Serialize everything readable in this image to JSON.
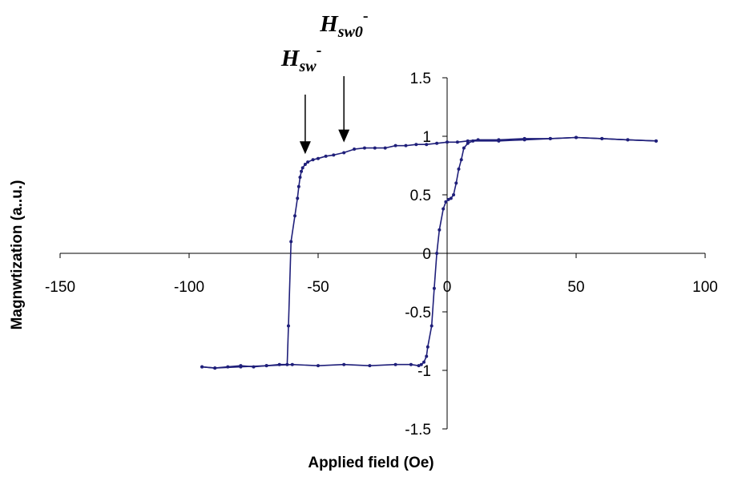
{
  "chart_data": {
    "type": "scatter",
    "xlabel": "Applied field (Oe)",
    "ylabel": "Magnwtization (a..u.)",
    "xlim": [
      -150,
      100
    ],
    "ylim": [
      -1.5,
      1.5
    ],
    "x_ticks": [
      -150,
      -100,
      -50,
      0,
      50,
      100
    ],
    "y_ticks": [
      -1.5,
      -1,
      -0.5,
      0,
      0.5,
      1,
      1.5
    ],
    "grid": false,
    "series_color": "#1f1f7a",
    "series": [
      {
        "x": [
          -95,
          -90,
          -85,
          -80,
          -75,
          -70,
          -65,
          -62,
          -61.5,
          -60.5,
          -59,
          -58,
          -57.5,
          -57,
          -56.5,
          -56,
          -55,
          -54,
          -52,
          -50,
          -47,
          -44,
          -40,
          -36,
          -32,
          -28,
          -24,
          -20,
          -16,
          -12,
          -8,
          -4,
          0,
          4,
          8,
          12,
          20,
          30,
          40,
          50,
          60,
          70,
          81
        ],
        "y": [
          -0.97,
          -0.98,
          -0.97,
          -0.96,
          -0.97,
          -0.96,
          -0.95,
          -0.95,
          -0.62,
          0.1,
          0.32,
          0.47,
          0.57,
          0.65,
          0.7,
          0.73,
          0.76,
          0.78,
          0.8,
          0.81,
          0.83,
          0.84,
          0.86,
          0.89,
          0.9,
          0.9,
          0.9,
          0.92,
          0.92,
          0.93,
          0.93,
          0.94,
          0.95,
          0.95,
          0.96,
          0.97,
          0.97,
          0.98,
          0.98,
          0.99,
          0.98,
          0.97,
          0.96
        ]
      },
      {
        "x": [
          81,
          70,
          60,
          50,
          40,
          30,
          20,
          10,
          8,
          6.5,
          5.5,
          4.5,
          3.5,
          2.5,
          1.5,
          0.5,
          -0.5,
          -1.5,
          -3,
          -4,
          -5,
          -6,
          -7.5,
          -8,
          -9,
          -10,
          -11,
          -14,
          -20,
          -30,
          -40,
          -50,
          -60,
          -70,
          -80,
          -90,
          -95
        ],
        "y": [
          0.96,
          0.97,
          0.98,
          0.99,
          0.98,
          0.97,
          0.96,
          0.96,
          0.94,
          0.9,
          0.8,
          0.72,
          0.6,
          0.5,
          0.47,
          0.46,
          0.44,
          0.38,
          0.2,
          0.0,
          -0.3,
          -0.62,
          -0.8,
          -0.88,
          -0.93,
          -0.95,
          -0.96,
          -0.95,
          -0.95,
          -0.96,
          -0.95,
          -0.96,
          -0.95,
          -0.96,
          -0.97,
          -0.98,
          -0.97
        ]
      }
    ],
    "annotations": [
      {
        "text": "H",
        "sub": "sw",
        "sup": "-",
        "arrow_x": -55,
        "arrow_tip_y": 0.82
      },
      {
        "text": "H",
        "sub": "sw0",
        "sup": "-",
        "arrow_x": -40,
        "arrow_tip_y": 0.92
      }
    ]
  }
}
